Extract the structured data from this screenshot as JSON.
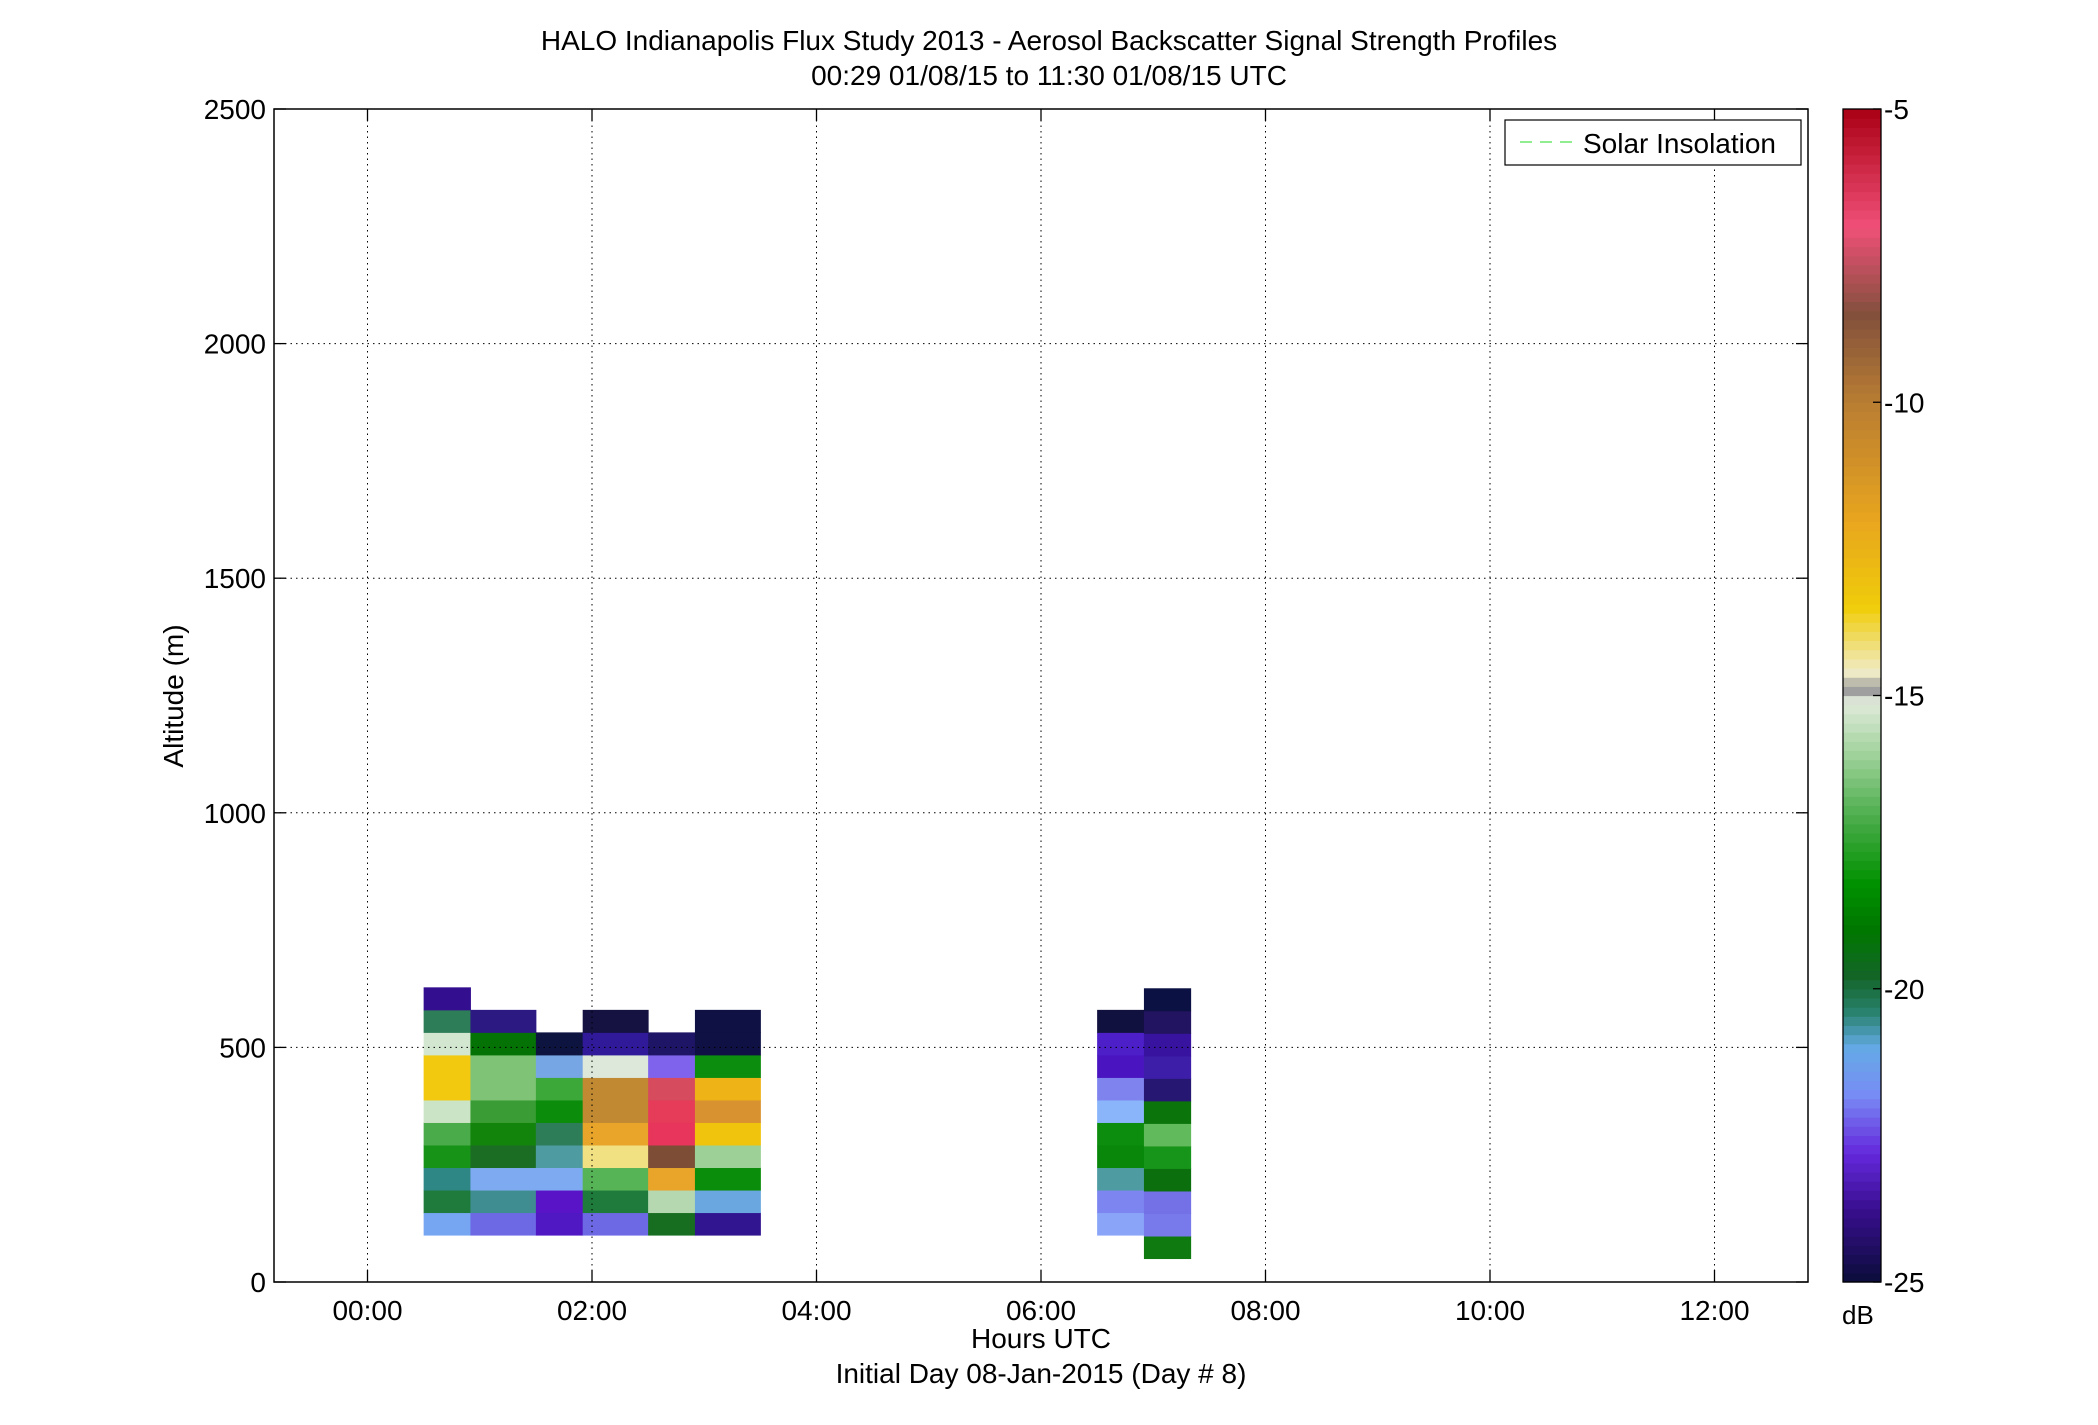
{
  "figure": {
    "title_line1": "HALO Indianapolis Flux Study 2013 - Aerosol Backscatter Signal Strength Profiles",
    "title_line2": "00:29 01/08/15 to 11:30 01/08/15  UTC",
    "xlabel": "Hours UTC",
    "xlabel2": "Initial Day 08-Jan-2015 (Day # 8)",
    "ylabel": "Altitude (m)",
    "colorbar_unit": "dB"
  },
  "chart_data": {
    "type": "heatmap",
    "title": "HALO Indianapolis Flux Study 2013 - Aerosol Backscatter Signal Strength Profiles",
    "subtitle": "00:29 01/08/15 to 11:30 01/08/15  UTC",
    "xlabel": "Hours UTC",
    "ylabel": "Altitude (m)",
    "xlim": [
      -0.833,
      12.833
    ],
    "ylim": [
      0,
      2500
    ],
    "x_ticks": [
      0,
      2,
      4,
      6,
      8,
      10,
      12
    ],
    "x_tick_labels": [
      "00:00",
      "02:00",
      "04:00",
      "06:00",
      "08:00",
      "10:00",
      "12:00"
    ],
    "y_ticks": [
      0,
      500,
      1000,
      1500,
      2000,
      2500
    ],
    "y_tick_labels": [
      "0",
      "500",
      "1000",
      "1500",
      "2000",
      "2500"
    ],
    "grid": true,
    "legend": {
      "position": "top-right",
      "entries": [
        "Solar Insolation"
      ],
      "color": "#90ee90"
    },
    "colorbar": {
      "min": -25,
      "max": -5,
      "unit": "dB",
      "ticks": [
        -5,
        -10,
        -15,
        -20,
        -25
      ],
      "tick_labels": [
        "-5",
        "-10",
        "-15",
        "-20",
        "-25"
      ]
    },
    "cell_height_m": 48,
    "columns": [
      {
        "x": [
          0.5,
          0.917
        ],
        "y_start": 100,
        "cells": [
          "#76a6f2",
          "#1e7b3c",
          "#2e8784",
          "#179417",
          "#4aab4b",
          "#cce4c6",
          "#f2c90e",
          "#f2c90e",
          "#d3e7d0",
          "#2d7d58",
          "#330e8f"
        ]
      },
      {
        "x": [
          0.917,
          1.5
        ],
        "y_start": 100,
        "cells": [
          "#6d69e5",
          "#3f8d90",
          "#7eaaf2",
          "#1c6d24",
          "#12840c",
          "#3a9c34",
          "#7fc476",
          "#7fc476",
          "#047204",
          "#2c1a82"
        ]
      },
      {
        "x": [
          1.5,
          1.917
        ],
        "y_start": 100,
        "cells": [
          "#4f18c2",
          "#5a14c8",
          "#7eaaf2",
          "#4e9ca2",
          "#2d7d58",
          "#0b8c0b",
          "#3ca83a",
          "#76a6e3",
          "#0e1440"
        ]
      },
      {
        "x": [
          1.917,
          2.5
        ],
        "y_start": 100,
        "cells": [
          "#6d69e5",
          "#1e7b3c",
          "#56b456",
          "#f1e182",
          "#e8a52a",
          "#c18a32",
          "#c18a32",
          "#dde8db",
          "#301a9a",
          "#151242"
        ]
      },
      {
        "x": [
          2.5,
          2.917
        ],
        "y_start": 100,
        "cells": [
          "#176e20",
          "#b5d8b0",
          "#e8a52a",
          "#7d4d36",
          "#e7355b",
          "#e63c59",
          "#d64b5d",
          "#8063ec",
          "#1f1566"
        ]
      },
      {
        "x": [
          2.917,
          3.5
        ],
        "y_start": 100,
        "cells": [
          "#301490",
          "#6aa7e0",
          "#0a8d0a",
          "#9cd096",
          "#f0c40c",
          "#d99230",
          "#edb317",
          "#0d8d0d",
          "#0f1145",
          "#0f1145"
        ]
      },
      {
        "x": [
          6.5,
          6.917
        ],
        "y_start": 100,
        "cells": [
          "#8aa5f8",
          "#7d86f0",
          "#4e9ca2",
          "#08870a",
          "#0d8d0d",
          "#8ab5fb",
          "#7e83ee",
          "#4a15c0",
          "#4c1fc8",
          "#11113f"
        ]
      },
      {
        "x": [
          6.917,
          7.333
        ],
        "y_start": 50,
        "cells": [
          "#0f7a0f",
          "#7879ea",
          "#7470e6",
          "#0b6f0e",
          "#17941a",
          "#61ba5c",
          "#0b750b",
          "#261872",
          "#3d1ea8",
          "#3713a0",
          "#231461",
          "#0b1142"
        ]
      }
    ]
  }
}
